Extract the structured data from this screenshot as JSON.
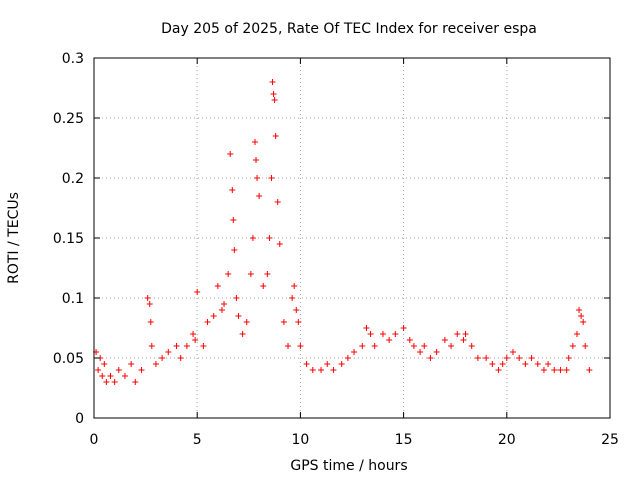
{
  "chart_data": {
    "type": "scatter",
    "title": "Day 205 of 2025, Rate Of TEC Index for receiver espa",
    "xlabel": "GPS time / hours",
    "ylabel": "ROTI / TECUs",
    "xlim": [
      0,
      25
    ],
    "ylim": [
      0,
      0.3
    ],
    "xticks": [
      0,
      5,
      10,
      15,
      20,
      25
    ],
    "yticks": [
      0,
      0.05,
      0.1,
      0.15,
      0.2,
      0.25,
      0.3
    ],
    "xtick_labels": [
      "0",
      "5",
      "10",
      "15",
      "20",
      "25"
    ],
    "ytick_labels": [
      "0",
      "0.05",
      "0.1",
      "0.15",
      "0.2",
      "0.25",
      "0.3"
    ],
    "grid": true,
    "marker": "plus",
    "marker_color": "#ff0000",
    "series": [
      {
        "x": [
          0.1,
          0.2,
          0.3,
          0.4,
          0.5,
          0.6,
          0.8,
          1.0,
          1.2,
          1.5,
          1.8,
          2.0,
          2.3,
          2.6,
          2.7,
          2.75,
          2.8,
          3.0,
          3.3,
          3.6,
          4.0,
          4.2,
          4.5,
          4.8,
          4.9,
          5.0,
          5.3,
          5.5,
          5.8,
          6.0,
          6.2,
          6.3,
          6.5,
          6.6,
          6.7,
          6.75,
          6.8,
          6.9,
          7.0,
          7.2,
          7.4,
          7.6,
          7.7,
          7.8,
          7.85,
          7.9,
          8.0,
          8.2,
          8.4,
          8.5,
          8.6,
          8.65,
          8.7,
          8.75,
          8.8,
          8.9,
          9.0,
          9.2,
          9.4,
          9.6,
          9.7,
          9.8,
          9.9,
          10.0,
          10.3,
          10.6,
          11.0,
          11.3,
          11.6,
          12.0,
          12.3,
          12.6,
          13.0,
          13.2,
          13.4,
          13.6,
          14.0,
          14.3,
          14.6,
          15.0,
          15.3,
          15.5,
          15.8,
          16.0,
          16.3,
          16.6,
          17.0,
          17.3,
          17.6,
          17.9,
          18.0,
          18.3,
          18.6,
          19.0,
          19.3,
          19.6,
          19.8,
          20.0,
          20.3,
          20.6,
          20.9,
          21.2,
          21.5,
          21.8,
          22.0,
          22.3,
          22.6,
          22.9,
          23.0,
          23.2,
          23.4,
          23.5,
          23.6,
          23.7,
          23.8,
          24.0
        ],
        "y": [
          0.055,
          0.04,
          0.05,
          0.035,
          0.045,
          0.03,
          0.035,
          0.03,
          0.04,
          0.035,
          0.045,
          0.03,
          0.04,
          0.1,
          0.095,
          0.08,
          0.06,
          0.045,
          0.05,
          0.055,
          0.06,
          0.05,
          0.06,
          0.07,
          0.065,
          0.105,
          0.06,
          0.08,
          0.085,
          0.11,
          0.09,
          0.095,
          0.12,
          0.22,
          0.19,
          0.165,
          0.14,
          0.1,
          0.085,
          0.07,
          0.08,
          0.12,
          0.15,
          0.23,
          0.215,
          0.2,
          0.185,
          0.11,
          0.12,
          0.15,
          0.2,
          0.28,
          0.27,
          0.265,
          0.235,
          0.18,
          0.145,
          0.08,
          0.06,
          0.1,
          0.11,
          0.09,
          0.08,
          0.06,
          0.045,
          0.04,
          0.04,
          0.045,
          0.04,
          0.045,
          0.05,
          0.055,
          0.06,
          0.075,
          0.07,
          0.06,
          0.07,
          0.065,
          0.07,
          0.075,
          0.065,
          0.06,
          0.055,
          0.06,
          0.05,
          0.055,
          0.065,
          0.06,
          0.07,
          0.065,
          0.07,
          0.06,
          0.05,
          0.05,
          0.045,
          0.04,
          0.045,
          0.05,
          0.055,
          0.05,
          0.045,
          0.05,
          0.045,
          0.04,
          0.045,
          0.04,
          0.04,
          0.04,
          0.05,
          0.06,
          0.07,
          0.09,
          0.085,
          0.08,
          0.06,
          0.04
        ]
      }
    ]
  }
}
